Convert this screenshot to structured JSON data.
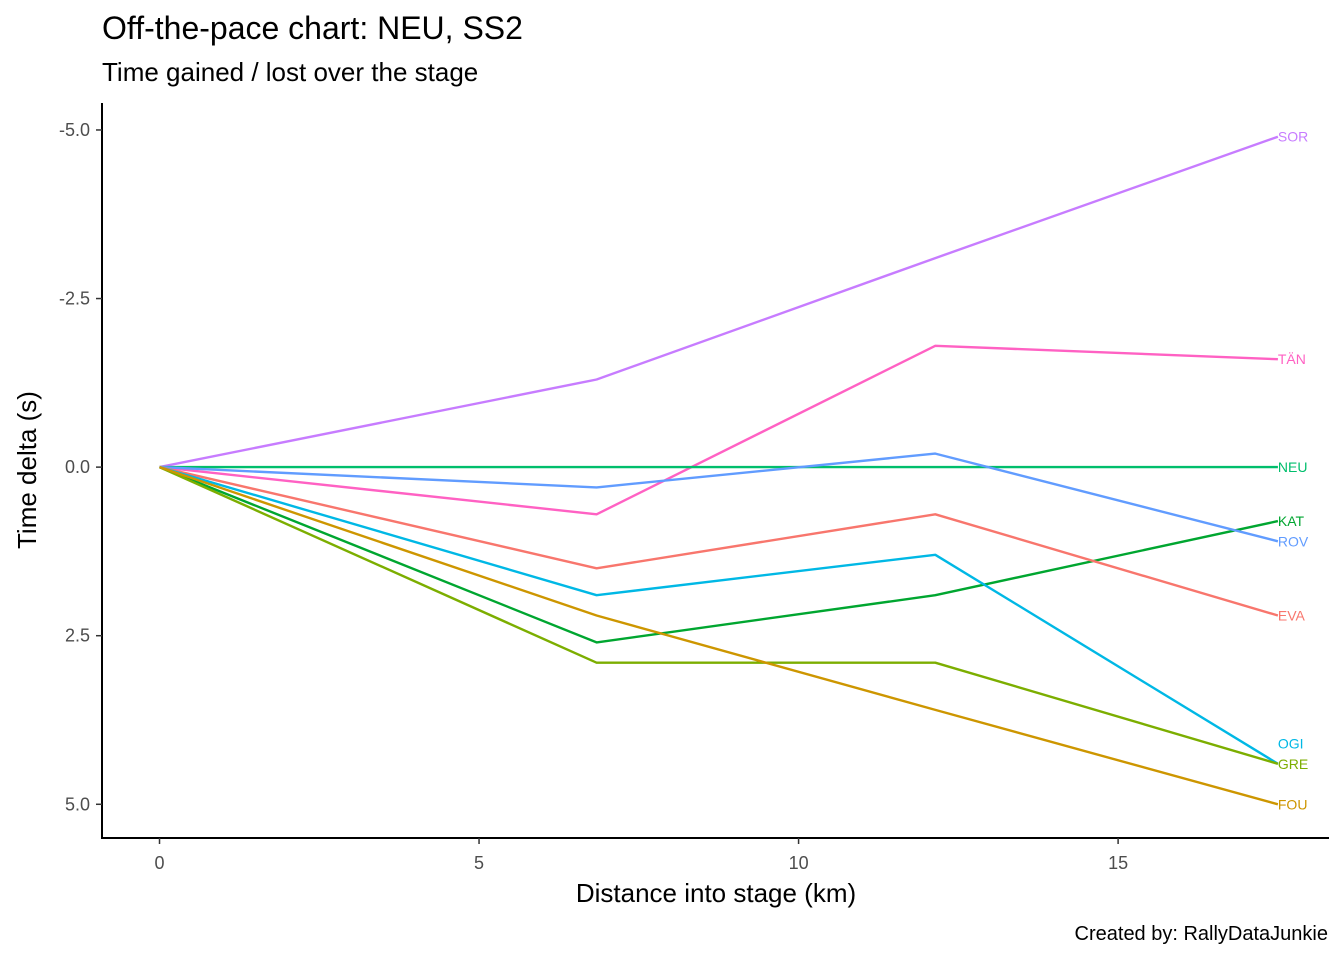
{
  "header": {
    "title": "Off-the-pace chart: NEU, SS2",
    "subtitle": "Time gained / lost over the stage"
  },
  "footer": {
    "caption": "Created by: RallyDataJunkie"
  },
  "chart_data": {
    "type": "line",
    "title": "Off-the-pace chart: NEU, SS2",
    "subtitle": "Time gained / lost over the stage",
    "xlabel": "Distance into stage (km)",
    "ylabel": "Time delta (s)",
    "xlim": [
      -0.9,
      18.3
    ],
    "ylim": [
      -5.4,
      5.5
    ],
    "y_reversed": true,
    "x_ticks": [
      0,
      5,
      10,
      15
    ],
    "x_tick_labels": [
      "0",
      "5",
      "10",
      "15"
    ],
    "y_ticks": [
      -5,
      -2.5,
      0,
      2.5,
      5
    ],
    "y_tick_labels": [
      "-5.0",
      "-2.5",
      "0.0",
      "2.5",
      "5.0"
    ],
    "grid": false,
    "legend": "none (direct end labels)",
    "x": [
      0,
      6.84,
      12.14,
      17.5
    ],
    "series": [
      {
        "name": "SOR",
        "color": "#C77CFF",
        "values": [
          0,
          -1.3,
          -3.1,
          -4.9
        ]
      },
      {
        "name": "TÄN",
        "color": "#FF61C3",
        "values": [
          0,
          0.7,
          -1.8,
          -1.6
        ]
      },
      {
        "name": "NEU",
        "color": "#00BE6C",
        "values": [
          0,
          0,
          0,
          0
        ]
      },
      {
        "name": "KAT",
        "color": "#00A630",
        "values": [
          0,
          2.6,
          1.9,
          0.8
        ]
      },
      {
        "name": "ROV",
        "color": "#619CFF",
        "values": [
          0,
          0.3,
          -0.2,
          1.1
        ]
      },
      {
        "name": "EVA",
        "color": "#F8766D",
        "values": [
          0,
          1.5,
          0.7,
          2.2
        ]
      },
      {
        "name": "OGI",
        "color": "#00B8E5",
        "values": [
          0,
          1.9,
          1.3,
          4.4
        ]
      },
      {
        "name": "GRE",
        "color": "#7CAE00",
        "values": [
          0,
          2.9,
          2.9,
          4.4
        ]
      },
      {
        "name": "FOU",
        "color": "#CD9600",
        "values": [
          0,
          2.2,
          3.6,
          5.0
        ]
      }
    ],
    "end_labels": [
      {
        "name": "SOR",
        "y": -4.9
      },
      {
        "name": "TÄN",
        "y": -1.6
      },
      {
        "name": "NEU",
        "y": 0.0
      },
      {
        "name": "KAT",
        "y": 0.8
      },
      {
        "name": "ROV",
        "y": 1.1
      },
      {
        "name": "EVA",
        "y": 2.2
      },
      {
        "name": "OGI",
        "y": 4.1
      },
      {
        "name": "GRE",
        "y": 4.4
      },
      {
        "name": "FOU",
        "y": 5.0
      }
    ]
  }
}
